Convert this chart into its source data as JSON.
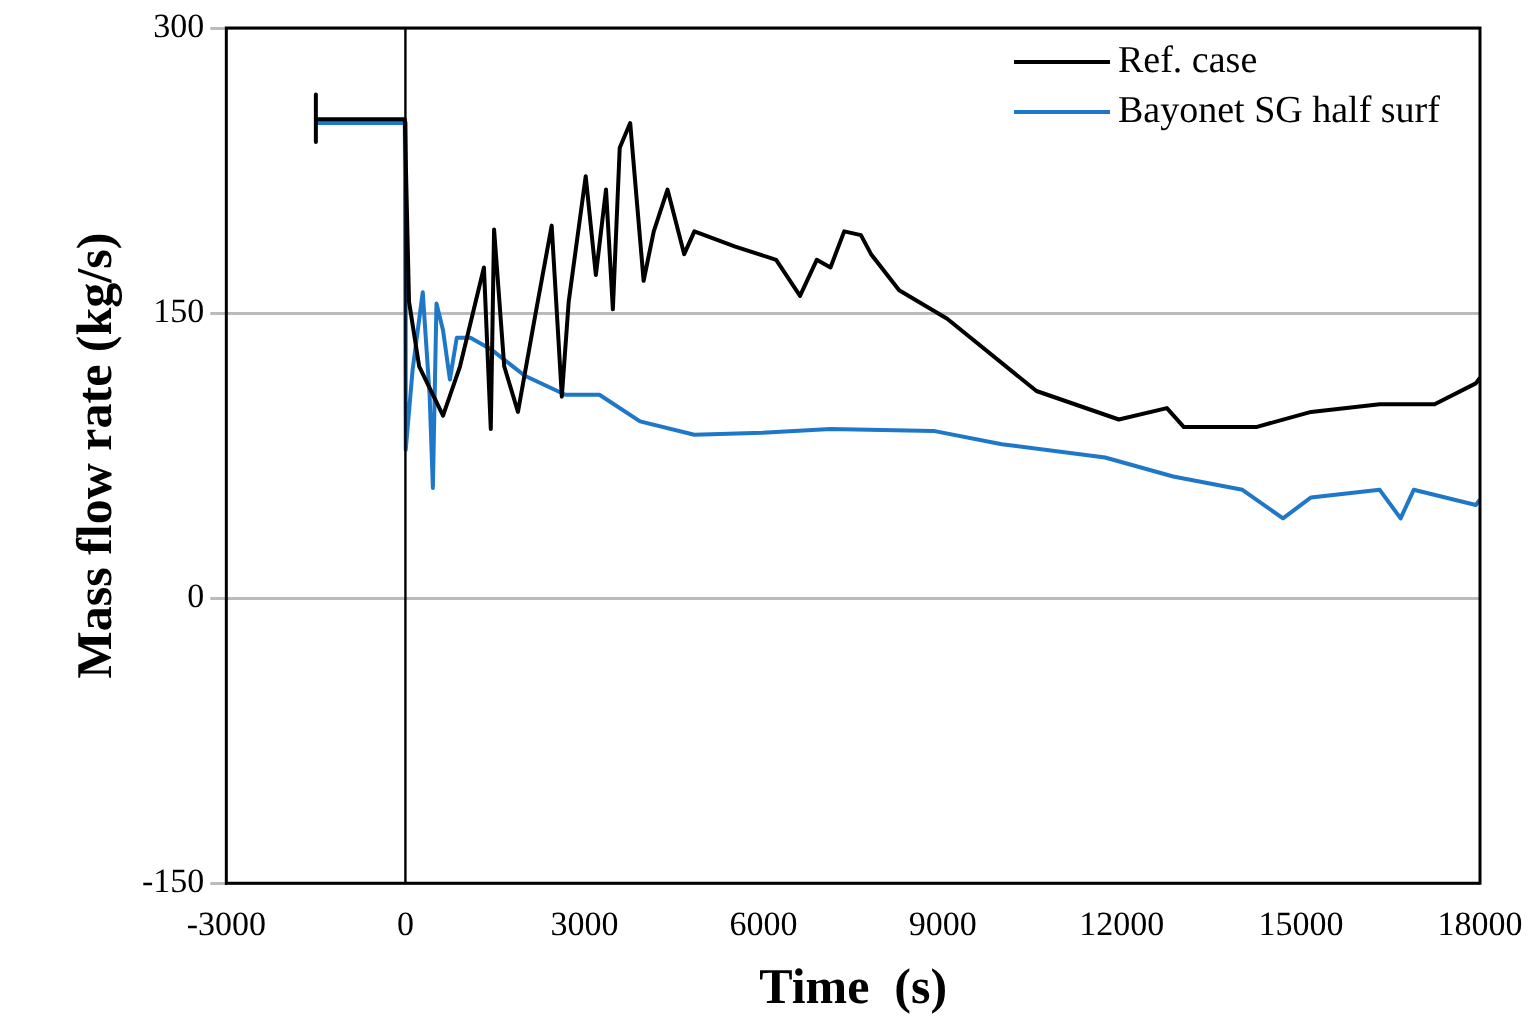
{
  "chart_data": {
    "type": "line",
    "xlabel": "Time  (s)",
    "ylabel": "Mass flow rate (kg/s)",
    "xlim": [
      -3000,
      18000
    ],
    "xticks": [
      -3000,
      0,
      3000,
      6000,
      9000,
      12000,
      15000,
      18000
    ],
    "ylim": [
      -150,
      300
    ],
    "yticks": [
      -150,
      0,
      150,
      300
    ],
    "grid": "y",
    "legend": "top right",
    "marker": "none",
    "line_style": "solid",
    "ref_lines": [
      {
        "axis": "x",
        "value": 0,
        "color": "#000000"
      }
    ],
    "series": [
      {
        "name": "Ref. case",
        "color": "#000000",
        "x": [
          -1500,
          -1500,
          -1500,
          -1000,
          -10,
          60,
          230,
          630,
          915,
          1315,
          1430,
          1485,
          1655,
          1885,
          2170,
          2450,
          2620,
          2735,
          3020,
          3190,
          3360,
          3475,
          3590,
          3765,
          3990,
          4160,
          4390,
          4670,
          4840,
          5525,
          6210,
          6610,
          6890,
          7120,
          7350,
          7630,
          7800,
          8270,
          9075,
          10570,
          11950,
          12755,
          13040,
          14250,
          15170,
          16320,
          17240,
          17930,
          18000
        ],
        "values": [
          265,
          240,
          252,
          252,
          252,
          156,
          122,
          96,
          122,
          174,
          89,
          194,
          122,
          98,
          148,
          196,
          106,
          156,
          222,
          170,
          215,
          152,
          237,
          250,
          167,
          193,
          215,
          181,
          193,
          185,
          178,
          159,
          178,
          174,
          193,
          191,
          181,
          162,
          147,
          109,
          94,
          100,
          90,
          90,
          98,
          102,
          102,
          113,
          116
        ]
      },
      {
        "name": "Bayonet SG half surf",
        "color": "#1f77c8",
        "x": [
          -1500,
          -1000,
          -10,
          5,
          120,
          290,
          405,
          460,
          520,
          630,
          745,
          860,
          1090,
          1430,
          2000,
          2680,
          3250,
          3930,
          4840,
          5980,
          7120,
          8845,
          9990,
          11720,
          12860,
          14020,
          14700,
          15170,
          16320,
          16670,
          16890,
          17930,
          18000
        ],
        "values": [
          250,
          250,
          250,
          78,
          120,
          161,
          107,
          58,
          155,
          141,
          115,
          137,
          137,
          131,
          117,
          107,
          107,
          93,
          86,
          87,
          89,
          88,
          81,
          74,
          64,
          57,
          42,
          53,
          57,
          42,
          57,
          49,
          52
        ]
      }
    ]
  }
}
